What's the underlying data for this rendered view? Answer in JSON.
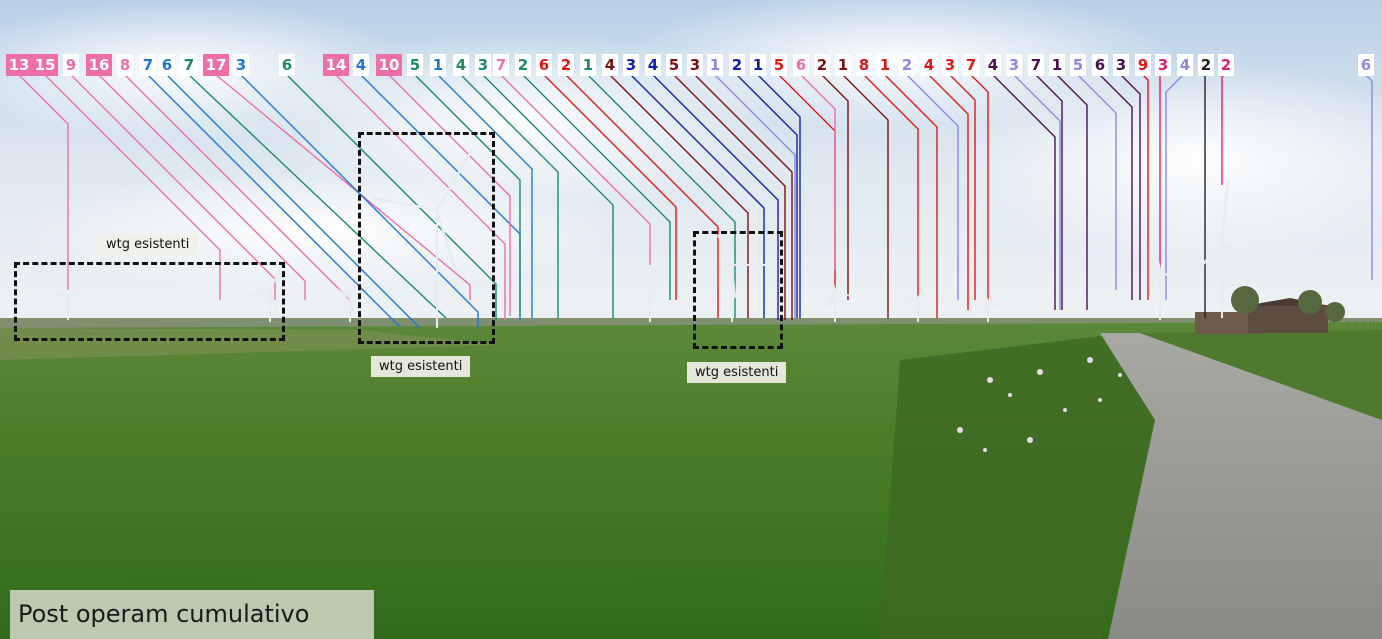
{
  "caption": "Post operam cumulativo",
  "existing_label": "wtg esistenti",
  "colors": {
    "pink": "#ee6ea6",
    "magenta": "#e02070",
    "blue": "#1f78d8",
    "teal": "#1a8a6a",
    "red": "#e01818",
    "darkred": "#7a1010",
    "navy": "#1020b0",
    "lavender": "#8a8ae0",
    "purple": "#4a1050",
    "black": "#222222"
  },
  "turbine_labels": [
    {
      "text": "13",
      "color": "pink"
    },
    {
      "text": "15",
      "color": "pink"
    },
    {
      "text": "9",
      "color": "pink"
    },
    {
      "text": "16",
      "color": "pink"
    },
    {
      "text": "8",
      "color": "pink"
    },
    {
      "text": "7",
      "color": "blue"
    },
    {
      "text": "6",
      "color": "blue"
    },
    {
      "text": "7",
      "color": "teal"
    },
    {
      "text": "17",
      "color": "pink"
    },
    {
      "text": "3",
      "color": "blue"
    },
    {
      "text": "6",
      "color": "teal"
    },
    {
      "text": "14",
      "color": "pink"
    },
    {
      "text": "4",
      "color": "blue"
    },
    {
      "text": "10",
      "color": "pink"
    },
    {
      "text": "5",
      "color": "teal"
    },
    {
      "text": "1",
      "color": "blue"
    },
    {
      "text": "4",
      "color": "teal"
    },
    {
      "text": "3",
      "color": "teal"
    },
    {
      "text": "7",
      "color": "pink"
    },
    {
      "text": "2",
      "color": "teal"
    },
    {
      "text": "6",
      "color": "red"
    },
    {
      "text": "2",
      "color": "red"
    },
    {
      "text": "1",
      "color": "teal"
    },
    {
      "text": "4",
      "color": "darkred"
    },
    {
      "text": "3",
      "color": "navy"
    },
    {
      "text": "4",
      "color": "navy"
    },
    {
      "text": "5",
      "color": "darkred"
    },
    {
      "text": "3",
      "color": "darkred"
    },
    {
      "text": "1",
      "color": "lavender"
    },
    {
      "text": "2",
      "color": "navy"
    },
    {
      "text": "1",
      "color": "navy"
    },
    {
      "text": "5",
      "color": "red"
    },
    {
      "text": "6",
      "color": "pink"
    },
    {
      "text": "2",
      "color": "darkred"
    },
    {
      "text": "1",
      "color": "darkred"
    },
    {
      "text": "8",
      "color": "red"
    },
    {
      "text": "1",
      "color": "red"
    },
    {
      "text": "2",
      "color": "lavender"
    },
    {
      "text": "4",
      "color": "red"
    },
    {
      "text": "3",
      "color": "red"
    },
    {
      "text": "7",
      "color": "red"
    },
    {
      "text": "4",
      "color": "purple"
    },
    {
      "text": "3",
      "color": "lavender"
    },
    {
      "text": "7",
      "color": "purple"
    },
    {
      "text": "1",
      "color": "purple"
    },
    {
      "text": "5",
      "color": "lavender"
    },
    {
      "text": "6",
      "color": "purple"
    },
    {
      "text": "3",
      "color": "purple"
    },
    {
      "text": "9",
      "color": "red"
    },
    {
      "text": "3",
      "color": "magenta"
    },
    {
      "text": "4",
      "color": "lavender"
    },
    {
      "text": "2",
      "color": "black"
    },
    {
      "text": "2",
      "color": "magenta"
    },
    {
      "text": "6",
      "color": "lavender"
    }
  ]
}
